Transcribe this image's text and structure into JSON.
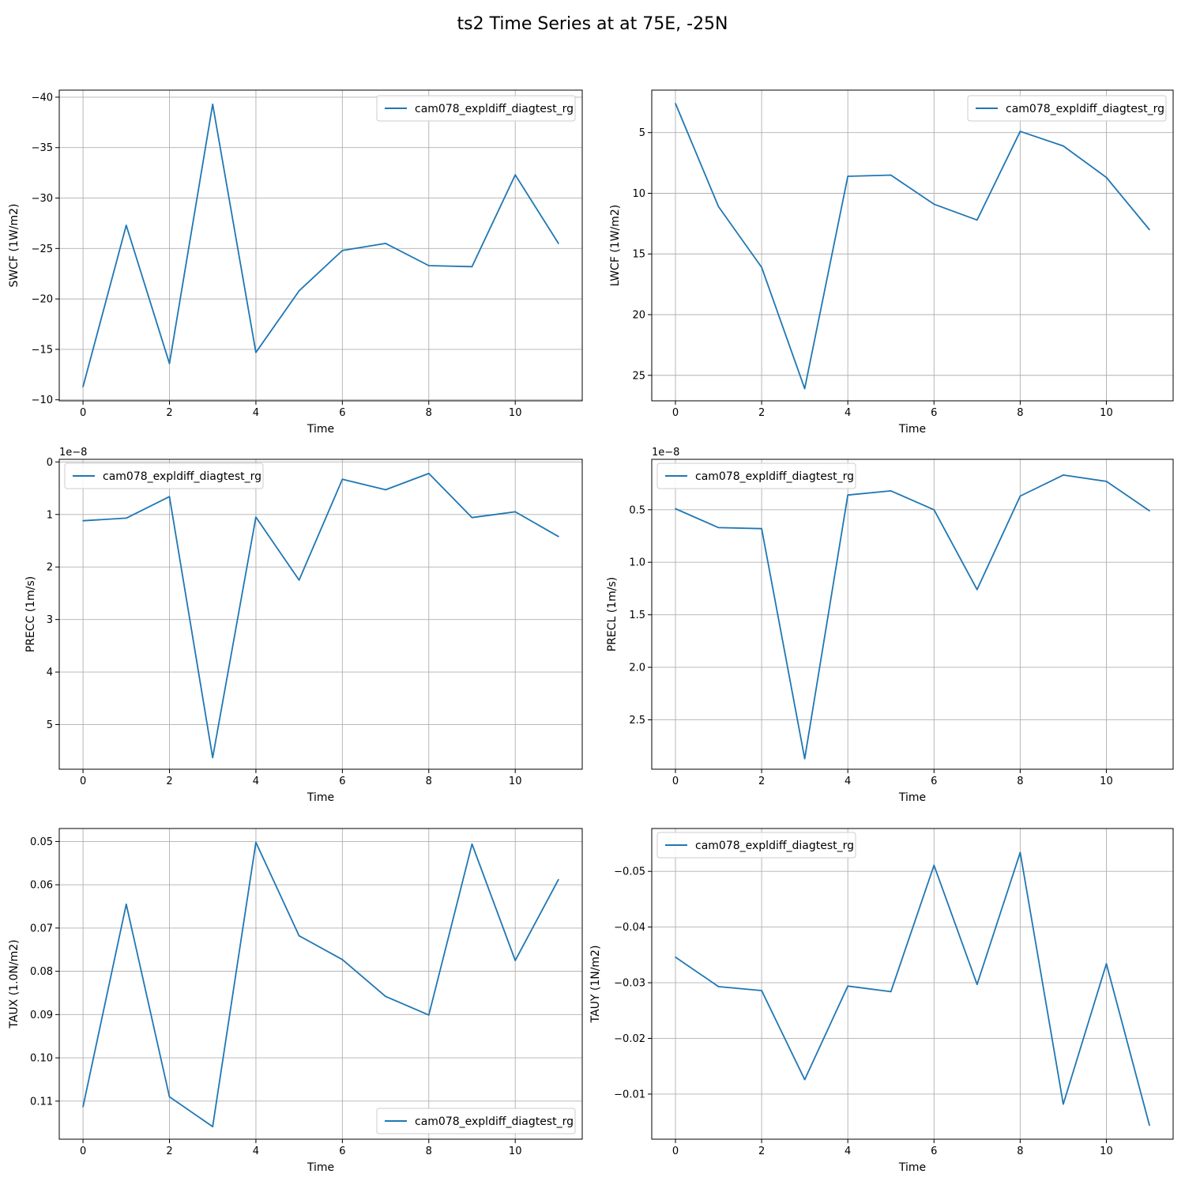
{
  "figure": {
    "suptitle": "ts2 Time Series at at 75E, -25N",
    "line_color": "#1f77b4",
    "grid_color": "#b0b0b0"
  },
  "chart_data": [
    {
      "type": "line",
      "xlabel": "Time",
      "ylabel": "SWCF (1W/m2)",
      "y_inverted": true,
      "xlim": [
        -0.55,
        11.55
      ],
      "ylim": [
        -9.9,
        -40.7
      ],
      "xticks": [
        0,
        2,
        4,
        6,
        8,
        10
      ],
      "yticks": [
        -40,
        -35,
        -30,
        -25,
        -20,
        -15,
        -10
      ],
      "ytick_labels": [
        "−40",
        "−35",
        "−30",
        "−25",
        "−20",
        "−15",
        "−10"
      ],
      "offset_text": "",
      "legend_loc": "upper-right",
      "grid": true,
      "series": [
        {
          "name": "cam078_expldiff_diagtest_rg",
          "x": [
            0,
            1,
            2,
            3,
            4,
            5,
            6,
            7,
            8,
            9,
            10,
            11
          ],
          "y": [
            -11.3,
            -27.3,
            -13.6,
            -39.3,
            -14.7,
            -20.8,
            -24.8,
            -25.5,
            -23.3,
            -23.2,
            -32.3,
            -25.5
          ]
        }
      ]
    },
    {
      "type": "line",
      "xlabel": "Time",
      "ylabel": "LWCF (1W/m2)",
      "y_inverted": true,
      "xlim": [
        -0.55,
        11.55
      ],
      "ylim": [
        27.1,
        1.5
      ],
      "xticks": [
        0,
        2,
        4,
        6,
        8,
        10
      ],
      "yticks": [
        5,
        10,
        15,
        20,
        25
      ],
      "ytick_labels": [
        "5",
        "10",
        "15",
        "20",
        "25"
      ],
      "offset_text": "",
      "legend_loc": "upper-right",
      "grid": true,
      "series": [
        {
          "name": "cam078_expldiff_diagtest_rg",
          "x": [
            0,
            1,
            2,
            3,
            4,
            5,
            6,
            7,
            8,
            9,
            10,
            11
          ],
          "y": [
            2.6,
            11.1,
            16.1,
            26.1,
            8.6,
            8.5,
            10.9,
            12.2,
            4.9,
            6.1,
            8.7,
            13.0
          ]
        }
      ]
    },
    {
      "type": "line",
      "xlabel": "Time",
      "ylabel": "PRECC (1m/s)",
      "y_inverted": true,
      "xlim": [
        -0.55,
        11.55
      ],
      "ylim": [
        5.85,
        -0.05
      ],
      "xticks": [
        0,
        2,
        4,
        6,
        8,
        10
      ],
      "yticks": [
        0,
        1,
        2,
        3,
        4,
        5
      ],
      "ytick_labels": [
        "0",
        "1",
        "2",
        "3",
        "4",
        "5"
      ],
      "offset_text": "1e−8",
      "legend_loc": "upper-left",
      "grid": true,
      "series": [
        {
          "name": "cam078_expldiff_diagtest_rg",
          "x": [
            0,
            1,
            2,
            3,
            4,
            5,
            6,
            7,
            8,
            9,
            10,
            11
          ],
          "y": [
            1.12,
            1.07,
            0.66,
            5.63,
            1.05,
            2.25,
            0.33,
            0.53,
            0.22,
            1.06,
            0.95,
            1.42
          ]
        }
      ]
    },
    {
      "type": "line",
      "xlabel": "Time",
      "ylabel": "PRECL (1m/s)",
      "y_inverted": true,
      "xlim": [
        -0.55,
        11.55
      ],
      "ylim": [
        2.97,
        0.02
      ],
      "xticks": [
        0,
        2,
        4,
        6,
        8,
        10
      ],
      "yticks": [
        0.5,
        1.0,
        1.5,
        2.0,
        2.5
      ],
      "ytick_labels": [
        "0.5",
        "1.0",
        "1.5",
        "2.0",
        "2.5"
      ],
      "offset_text": "1e−8",
      "legend_loc": "upper-left",
      "grid": true,
      "series": [
        {
          "name": "cam078_expldiff_diagtest_rg",
          "x": [
            0,
            1,
            2,
            3,
            4,
            5,
            6,
            7,
            8,
            9,
            10,
            11
          ],
          "y": [
            0.49,
            0.67,
            0.68,
            2.87,
            0.36,
            0.32,
            0.5,
            1.26,
            0.37,
            0.17,
            0.23,
            0.51
          ]
        }
      ]
    },
    {
      "type": "line",
      "xlabel": "Time",
      "ylabel": "TAUX (1.0N/m2)",
      "y_inverted": true,
      "xlim": [
        -0.55,
        11.55
      ],
      "ylim": [
        0.1188,
        0.047
      ],
      "xticks": [
        0,
        2,
        4,
        6,
        8,
        10
      ],
      "yticks": [
        0.05,
        0.06,
        0.07,
        0.08,
        0.09,
        0.1,
        0.11
      ],
      "ytick_labels": [
        "0.05",
        "0.06",
        "0.07",
        "0.08",
        "0.09",
        "0.10",
        "0.11"
      ],
      "offset_text": "",
      "legend_loc": "lower-right",
      "grid": true,
      "series": [
        {
          "name": "cam078_expldiff_diagtest_rg",
          "x": [
            0,
            1,
            2,
            3,
            4,
            5,
            6,
            7,
            8,
            9,
            10,
            11
          ],
          "y": [
            0.1113,
            0.0645,
            0.109,
            0.1159,
            0.0502,
            0.0718,
            0.0773,
            0.0858,
            0.0901,
            0.0506,
            0.0775,
            0.0588
          ]
        }
      ]
    },
    {
      "type": "line",
      "xlabel": "Time",
      "ylabel": "TAUY (1N/m2)",
      "y_inverted": true,
      "xlim": [
        -0.55,
        11.55
      ],
      "ylim": [
        -0.0019,
        -0.0577
      ],
      "xticks": [
        0,
        2,
        4,
        6,
        8,
        10
      ],
      "yticks": [
        -0.05,
        -0.04,
        -0.03,
        -0.02,
        -0.01
      ],
      "ytick_labels": [
        "−0.05",
        "−0.04",
        "−0.03",
        "−0.02",
        "−0.01"
      ],
      "offset_text": "",
      "legend_loc": "upper-left",
      "grid": true,
      "series": [
        {
          "name": "cam078_expldiff_diagtest_rg",
          "x": [
            0,
            1,
            2,
            3,
            4,
            5,
            6,
            7,
            8,
            9,
            10,
            11
          ],
          "y": [
            -0.0346,
            -0.0293,
            -0.0286,
            -0.0126,
            -0.0294,
            -0.0284,
            -0.0511,
            -0.0297,
            -0.0534,
            -0.0082,
            -0.0334,
            -0.0044
          ]
        }
      ]
    }
  ]
}
